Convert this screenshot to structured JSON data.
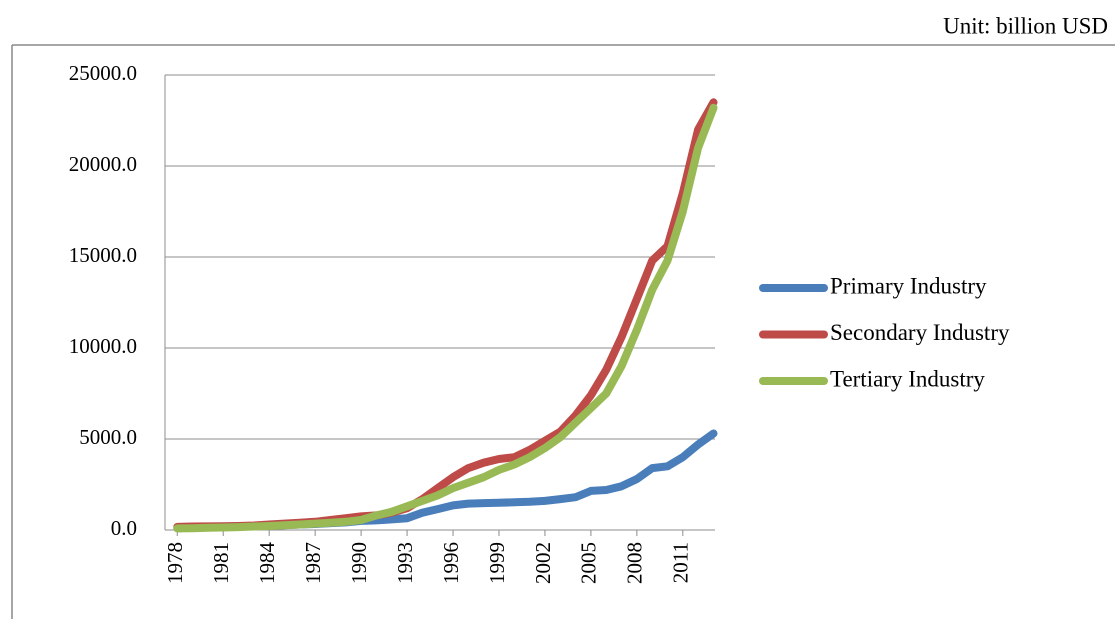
{
  "chart_data": {
    "type": "line",
    "unit_label": "Unit: billion USD",
    "x": [
      1978,
      1979,
      1980,
      1981,
      1982,
      1983,
      1984,
      1985,
      1986,
      1987,
      1988,
      1989,
      1990,
      1991,
      1992,
      1993,
      1994,
      1995,
      1996,
      1997,
      1998,
      1999,
      2000,
      2001,
      2002,
      2003,
      2004,
      2005,
      2006,
      2007,
      2008,
      2009,
      2010,
      2011,
      2012,
      2013
    ],
    "xlim": [
      1977.2,
      2013.1
    ],
    "xticks": [
      1978,
      1981,
      1984,
      1987,
      1990,
      1993,
      1996,
      1999,
      2002,
      2005,
      2008,
      2011
    ],
    "ylim": [
      0,
      25000
    ],
    "yticks": [
      {
        "value": 0,
        "label": "0.0"
      },
      {
        "value": 5000,
        "label": "5000.0"
      },
      {
        "value": 10000,
        "label": "10000.0"
      },
      {
        "value": 15000,
        "label": "15000.0"
      },
      {
        "value": 20000,
        "label": "20000.0"
      },
      {
        "value": 25000,
        "label": "25000.0"
      }
    ],
    "grid": true,
    "legend": "right",
    "series": [
      {
        "name": "Primary Industry",
        "color": "#4a7ebb",
        "values": [
          100,
          130,
          150,
          170,
          190,
          220,
          250,
          270,
          300,
          330,
          380,
          420,
          500,
          530,
          580,
          650,
          950,
          1150,
          1350,
          1450,
          1480,
          1500,
          1520,
          1550,
          1600,
          1700,
          1800,
          2150,
          2200,
          2400,
          2800,
          3400,
          3500,
          4000,
          4700,
          5300
        ]
      },
      {
        "name": "Secondary Industry",
        "color": "#be4b48",
        "values": [
          170,
          190,
          200,
          210,
          220,
          250,
          300,
          350,
          400,
          450,
          550,
          650,
          750,
          800,
          950,
          1200,
          1700,
          2300,
          2900,
          3400,
          3700,
          3900,
          4000,
          4400,
          4900,
          5400,
          6300,
          7400,
          8800,
          10600,
          12700,
          14800,
          15600,
          18500,
          22000,
          23500
        ]
      },
      {
        "name": "Tertiary Industry",
        "color": "#98b954",
        "values": [
          90,
          100,
          120,
          140,
          160,
          190,
          220,
          260,
          300,
          350,
          400,
          450,
          550,
          800,
          1000,
          1300,
          1600,
          1900,
          2300,
          2600,
          2900,
          3300,
          3600,
          4000,
          4500,
          5100,
          5900,
          6700,
          7500,
          9000,
          11000,
          13200,
          14800,
          17500,
          21000,
          23200
        ]
      }
    ]
  }
}
